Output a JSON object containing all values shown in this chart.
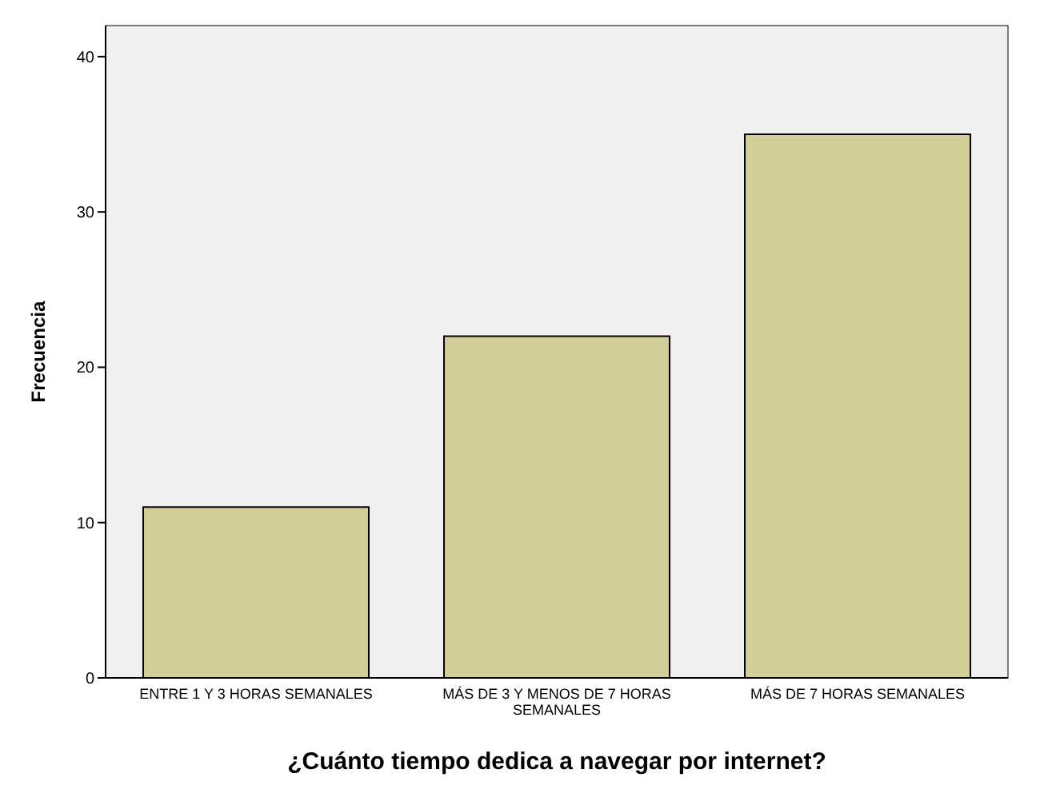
{
  "chart_data": {
    "type": "bar",
    "xlabel": "¿Cuánto tiempo dedica a navegar por internet?",
    "ylabel": "Frecuencia",
    "categories": [
      "ENTRE 1 Y 3 HORAS SEMANALES",
      "MÁS DE 3 Y MENOS DE 7 HORAS SEMANALES",
      "MÁS DE 7 HORAS SEMANALES"
    ],
    "values": [
      11,
      22,
      35
    ],
    "color": "#d3ce97",
    "ylim": [
      0,
      42
    ],
    "yticks": [
      0,
      10,
      20,
      30,
      40
    ],
    "grid": false
  }
}
